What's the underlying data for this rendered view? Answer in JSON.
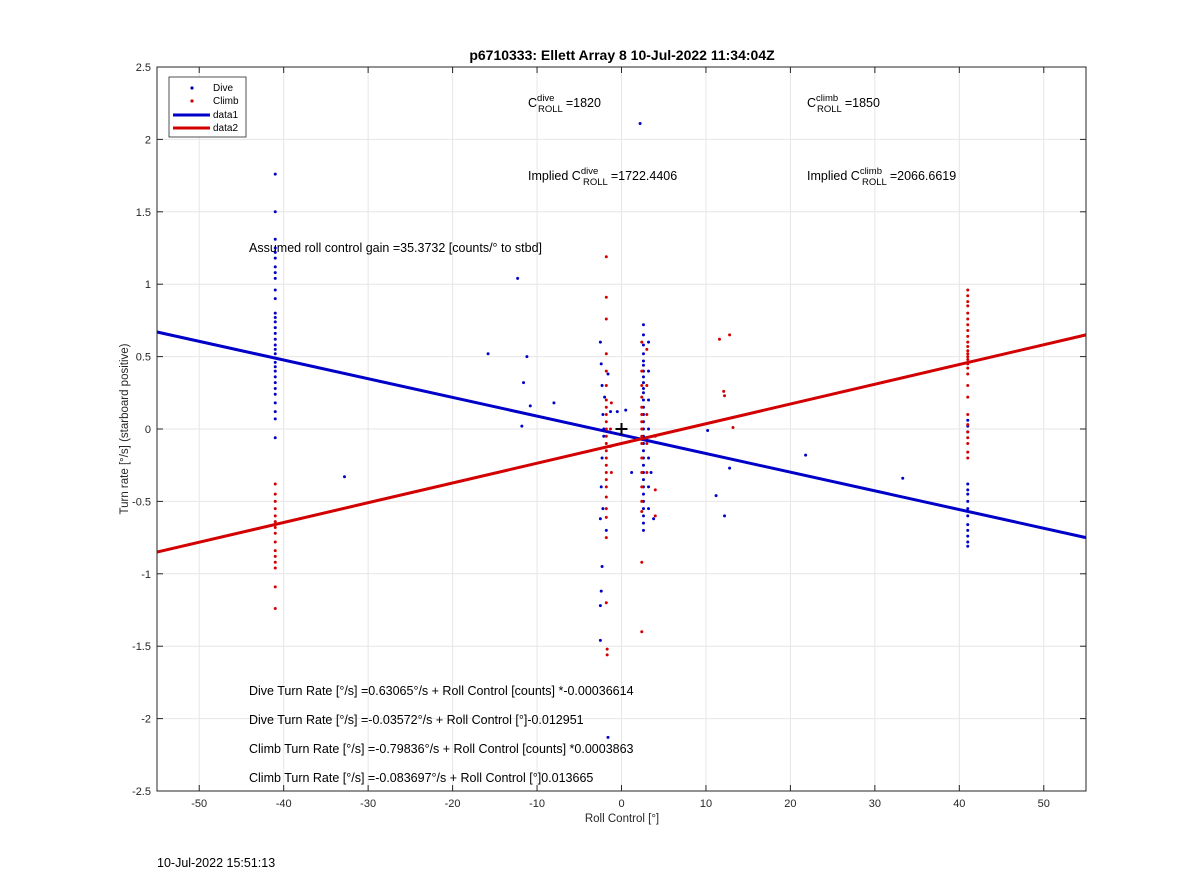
{
  "footer": {
    "timestamp": "10-Jul-2022 15:51:13"
  },
  "colors": {
    "dive": "#0000c8",
    "climb": "#d20000",
    "grid": "#e6e6e6",
    "axis": "#262626"
  },
  "chart_data": {
    "type": "scatter",
    "title": "p6710333: Ellett Array 8 10-Jul-2022 11:34:04Z",
    "xlabel": "Roll Control [°]",
    "ylabel": "Turn rate [°/s] (starboard positive)",
    "xlim": [
      -55,
      55
    ],
    "ylim": [
      -2.5,
      2.5
    ],
    "xticks": [
      -50,
      -40,
      -30,
      -20,
      -10,
      0,
      10,
      20,
      30,
      40,
      50
    ],
    "yticks": [
      -2.5,
      -2,
      -1.5,
      -1,
      -0.5,
      0,
      0.5,
      1,
      1.5,
      2,
      2.5
    ],
    "yticklabels": [
      "-2.5",
      "-2",
      "-1.5",
      "-1",
      "-0.5",
      "0",
      "0.5",
      "1",
      "1.5",
      "2",
      "2.5"
    ],
    "grid": true,
    "legend": {
      "position": "top-left",
      "entries": [
        "Dive",
        "Climb",
        "data1",
        "data2"
      ]
    },
    "series": [
      {
        "name": "Dive",
        "kind": "points",
        "color": "#0000c8",
        "points": [
          [
            -41,
            1.76
          ],
          [
            -41,
            1.5
          ],
          [
            -41,
            1.31
          ],
          [
            -41,
            1.25
          ],
          [
            -41,
            1.22
          ],
          [
            -41,
            1.18
          ],
          [
            -41,
            1.12
          ],
          [
            -41,
            1.08
          ],
          [
            -41,
            1.04
          ],
          [
            -41,
            0.96
          ],
          [
            -41,
            0.9
          ],
          [
            -41,
            0.8
          ],
          [
            -41,
            0.77
          ],
          [
            -41,
            0.74
          ],
          [
            -41,
            0.7
          ],
          [
            -41,
            0.66
          ],
          [
            -41,
            0.62
          ],
          [
            -41,
            0.58
          ],
          [
            -41,
            0.55
          ],
          [
            -41,
            0.52
          ],
          [
            -41,
            0.49
          ],
          [
            -41,
            0.46
          ],
          [
            -41,
            0.43
          ],
          [
            -41,
            0.4
          ],
          [
            -41,
            0.36
          ],
          [
            -41,
            0.32
          ],
          [
            -41,
            0.28
          ],
          [
            -41,
            0.24
          ],
          [
            -41,
            0.18
          ],
          [
            -41,
            0.12
          ],
          [
            -41,
            0.07
          ],
          [
            -41,
            -0.06
          ],
          [
            -32.8,
            -0.33
          ],
          [
            -15.8,
            0.52
          ],
          [
            -12.3,
            1.04
          ],
          [
            -11.8,
            0.02
          ],
          [
            -11.6,
            0.32
          ],
          [
            -11.2,
            0.5
          ],
          [
            -10.8,
            0.16
          ],
          [
            -8,
            0.18
          ],
          [
            -2.5,
            0.6
          ],
          [
            -2.4,
            0.45
          ],
          [
            -2.3,
            0.3
          ],
          [
            -2.2,
            0.1
          ],
          [
            -2.1,
            -0.05
          ],
          [
            -2.3,
            -0.2
          ],
          [
            -2.4,
            -0.4
          ],
          [
            -2.2,
            -0.55
          ],
          [
            -2.5,
            -0.62
          ],
          [
            -2.3,
            -0.95
          ],
          [
            -2.4,
            -1.12
          ],
          [
            -2.5,
            -1.22
          ],
          [
            -2.5,
            -1.46
          ],
          [
            -1.6,
            -2.13
          ],
          [
            -1.8,
            -0.7
          ],
          [
            -1.6,
            0.38
          ],
          [
            -2,
            0.22
          ],
          [
            -2.1,
            0.0
          ],
          [
            -1.3,
            0.12
          ],
          [
            -0.5,
            0.12
          ],
          [
            0.5,
            0.13
          ],
          [
            1.2,
            -0.3
          ],
          [
            2.2,
            2.11
          ],
          [
            2.6,
            0.72
          ],
          [
            2.6,
            0.65
          ],
          [
            2.6,
            0.58
          ],
          [
            2.6,
            0.52
          ],
          [
            2.6,
            0.47
          ],
          [
            2.6,
            0.44
          ],
          [
            2.6,
            0.4
          ],
          [
            2.6,
            0.36
          ],
          [
            2.6,
            0.32
          ],
          [
            2.6,
            0.28
          ],
          [
            2.6,
            0.25
          ],
          [
            2.6,
            0.2
          ],
          [
            2.6,
            0.15
          ],
          [
            2.6,
            0.1
          ],
          [
            2.6,
            0.05
          ],
          [
            2.6,
            0.0
          ],
          [
            2.6,
            -0.05
          ],
          [
            2.6,
            -0.1
          ],
          [
            2.6,
            -0.15
          ],
          [
            2.6,
            -0.2
          ],
          [
            2.6,
            -0.25
          ],
          [
            2.6,
            -0.3
          ],
          [
            2.6,
            -0.35
          ],
          [
            2.6,
            -0.4
          ],
          [
            2.6,
            -0.45
          ],
          [
            2.6,
            -0.5
          ],
          [
            2.6,
            -0.55
          ],
          [
            2.6,
            -0.6
          ],
          [
            2.6,
            -0.65
          ],
          [
            2.6,
            -0.7
          ],
          [
            3.2,
            0.6
          ],
          [
            3.2,
            0.4
          ],
          [
            3.2,
            0.2
          ],
          [
            3.2,
            0.0
          ],
          [
            3.2,
            -0.2
          ],
          [
            3.2,
            -0.4
          ],
          [
            3.2,
            -0.55
          ],
          [
            3.8,
            -0.62
          ],
          [
            3.5,
            -0.3
          ],
          [
            10.2,
            -0.01
          ],
          [
            11.2,
            -0.46
          ],
          [
            12.2,
            -0.6
          ],
          [
            12.8,
            -0.27
          ],
          [
            21.8,
            -0.18
          ],
          [
            33.3,
            -0.34
          ],
          [
            41,
            0.06
          ],
          [
            41,
            0.02
          ],
          [
            41,
            -0.02
          ],
          [
            41,
            -0.38
          ],
          [
            41,
            -0.42
          ],
          [
            41,
            -0.45
          ],
          [
            41,
            -0.5
          ],
          [
            41,
            -0.55
          ],
          [
            41,
            -0.6
          ],
          [
            41,
            -0.66
          ],
          [
            41,
            -0.7
          ],
          [
            41,
            -0.74
          ],
          [
            41,
            -0.78
          ],
          [
            41,
            -0.81
          ]
        ]
      },
      {
        "name": "Climb",
        "kind": "points",
        "color": "#d20000",
        "points": [
          [
            -41,
            -0.38
          ],
          [
            -41,
            -0.45
          ],
          [
            -41,
            -0.5
          ],
          [
            -41,
            -0.55
          ],
          [
            -41,
            -0.6
          ],
          [
            -41,
            -0.64
          ],
          [
            -41,
            -0.68
          ],
          [
            -41,
            -0.72
          ],
          [
            -41,
            -0.78
          ],
          [
            -41,
            -0.84
          ],
          [
            -41,
            -0.88
          ],
          [
            -41,
            -0.92
          ],
          [
            -41,
            -0.96
          ],
          [
            -41,
            -1.09
          ],
          [
            -41,
            -1.24
          ],
          [
            -1.8,
            1.19
          ],
          [
            -1.8,
            0.91
          ],
          [
            -1.8,
            0.76
          ],
          [
            -1.8,
            0.52
          ],
          [
            -1.8,
            0.4
          ],
          [
            -1.8,
            0.3
          ],
          [
            -1.8,
            0.2
          ],
          [
            -1.8,
            0.15
          ],
          [
            -1.8,
            0.1
          ],
          [
            -1.8,
            0.05
          ],
          [
            -1.8,
            0.0
          ],
          [
            -1.8,
            -0.05
          ],
          [
            -1.8,
            -0.1
          ],
          [
            -1.8,
            -0.15
          ],
          [
            -1.8,
            -0.2
          ],
          [
            -1.8,
            -0.25
          ],
          [
            -1.8,
            -0.3
          ],
          [
            -1.8,
            -0.35
          ],
          [
            -1.8,
            -0.4
          ],
          [
            -1.8,
            -0.47
          ],
          [
            -1.8,
            -0.55
          ],
          [
            -1.8,
            -0.61
          ],
          [
            -1.8,
            -0.75
          ],
          [
            -1.8,
            -1.2
          ],
          [
            -1.7,
            -1.52
          ],
          [
            -1.7,
            -1.56
          ],
          [
            -1.2,
            0.18
          ],
          [
            -1.3,
            0.0
          ],
          [
            -1.3,
            -0.12
          ],
          [
            -1.2,
            -0.3
          ],
          [
            2.4,
            0.6
          ],
          [
            2.4,
            0.4
          ],
          [
            2.4,
            0.3
          ],
          [
            2.4,
            0.22
          ],
          [
            2.4,
            0.15
          ],
          [
            2.4,
            0.1
          ],
          [
            2.4,
            0.05
          ],
          [
            2.4,
            0.0
          ],
          [
            2.4,
            -0.05
          ],
          [
            2.4,
            -0.1
          ],
          [
            2.4,
            -0.2
          ],
          [
            2.4,
            -0.3
          ],
          [
            2.4,
            -0.4
          ],
          [
            2.4,
            -0.5
          ],
          [
            2.4,
            -0.57
          ],
          [
            2.4,
            -0.92
          ],
          [
            2.4,
            -1.4
          ],
          [
            3.0,
            0.55
          ],
          [
            3.0,
            0.3
          ],
          [
            3.0,
            0.1
          ],
          [
            3.0,
            -0.1
          ],
          [
            3.0,
            -0.3
          ],
          [
            4.0,
            -0.6
          ],
          [
            4.0,
            -0.42
          ],
          [
            4.0,
            -0.05
          ],
          [
            11.6,
            0.62
          ],
          [
            12.1,
            0.26
          ],
          [
            12.2,
            0.23
          ],
          [
            12.8,
            0.65
          ],
          [
            13.2,
            0.01
          ],
          [
            41,
            0.96
          ],
          [
            41,
            0.92
          ],
          [
            41,
            0.88
          ],
          [
            41,
            0.85
          ],
          [
            41,
            0.8
          ],
          [
            41,
            0.76
          ],
          [
            41,
            0.72
          ],
          [
            41,
            0.68
          ],
          [
            41,
            0.64
          ],
          [
            41,
            0.6
          ],
          [
            41,
            0.57
          ],
          [
            41,
            0.54
          ],
          [
            41,
            0.52
          ],
          [
            41,
            0.5
          ],
          [
            41,
            0.48
          ],
          [
            41,
            0.45
          ],
          [
            41,
            0.42
          ],
          [
            41,
            0.38
          ],
          [
            41,
            0.3
          ],
          [
            41,
            0.22
          ],
          [
            41,
            0.1
          ],
          [
            41,
            0.03
          ],
          [
            41,
            -0.02
          ],
          [
            41,
            -0.06
          ],
          [
            41,
            -0.1
          ],
          [
            41,
            -0.16
          ],
          [
            41,
            -0.2
          ]
        ]
      },
      {
        "name": "data1",
        "kind": "line",
        "color": "#0000c8",
        "x": [
          -55,
          55
        ],
        "y": [
          0.67,
          -0.75
        ]
      },
      {
        "name": "data2",
        "kind": "line",
        "color": "#d20000",
        "x": [
          -55,
          55
        ],
        "y": [
          -0.85,
          0.65
        ]
      }
    ],
    "marker": {
      "symbol": "+",
      "x": 0,
      "y": 0
    },
    "annotations": {
      "c_dive": {
        "base": "C",
        "sup": "dive",
        "sub": "ROLL",
        "value": "=1820"
      },
      "c_climb": {
        "base": "C",
        "sup": "climb",
        "sub": "ROLL",
        "value": "=1850"
      },
      "implied_dive": {
        "prefix": "Implied ",
        "base": "C",
        "sup": "dive",
        "sub": "ROLL",
        "value": "=1722.4406"
      },
      "implied_climb": {
        "prefix": "Implied ",
        "base": "C",
        "sup": "climb",
        "sub": "ROLL",
        "value": "=2066.6619"
      },
      "gain": "Assumed roll control gain =35.3732 [counts/° to stbd]",
      "eq1": "Dive Turn Rate [°/s] =0.63065°/s + Roll Control [counts] *-0.00036614",
      "eq2": "Dive Turn Rate [°/s] =-0.03572°/s + Roll Control [°]-0.012951",
      "eq3": "Climb Turn Rate [°/s] =-0.79836°/s + Roll Control [counts] *0.0003863",
      "eq4": "Climb Turn Rate [°/s] =-0.083697°/s + Roll Control [°]0.013665"
    }
  }
}
